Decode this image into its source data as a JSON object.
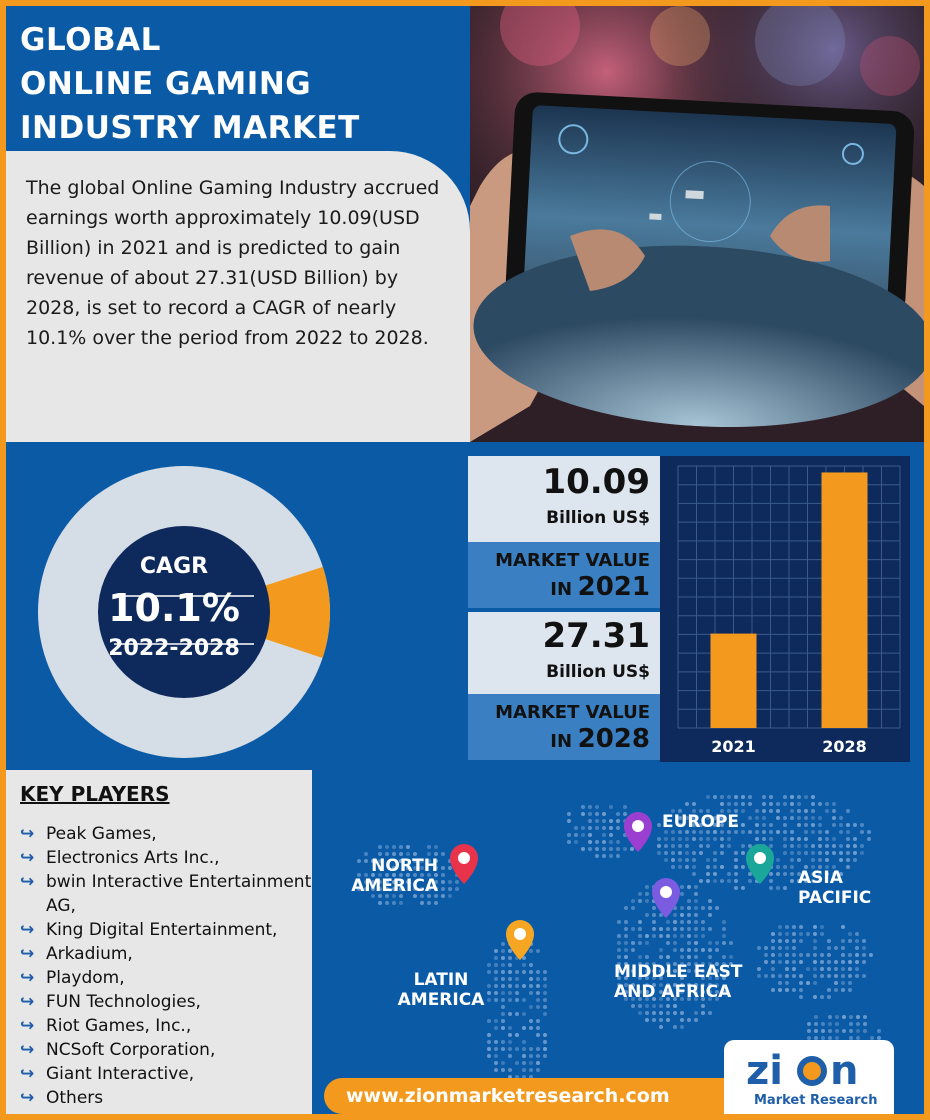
{
  "header": {
    "title_lines": [
      "GLOBAL",
      "ONLINE GAMING",
      "INDUSTRY MARKET"
    ],
    "description": "The global Online Gaming Industry accrued earnings worth approximately 10.09(USD Billion) in 2021 and is predicted to gain revenue of about 27.31(USD Billion) by 2028, is set to record a CAGR of nearly 10.1% over the period from 2022 to 2028."
  },
  "cagr": {
    "label": "CAGR",
    "value": "10.1%",
    "period": "2022-2028",
    "share_fraction": 0.101
  },
  "market_values": [
    {
      "value": "10.09",
      "unit": "Billion US$",
      "label_top": "MARKET VALUE",
      "label_in": "IN",
      "year": "2021"
    },
    {
      "value": "27.31",
      "unit": "Billion US$",
      "label_top": "MARKET VALUE",
      "label_in": "IN",
      "year": "2028"
    }
  ],
  "chart_data": {
    "type": "bar",
    "categories": [
      "2021",
      "2028"
    ],
    "values": [
      10.09,
      27.31
    ],
    "title": "",
    "xlabel": "",
    "ylabel": "",
    "ylim": [
      0,
      28
    ],
    "grid": true,
    "bar_color": "#f39a1e"
  },
  "key_players": {
    "title": "KEY PLAYERS",
    "items": [
      "Peak Games,",
      "Electronics Arts Inc.,",
      "bwin Interactive Entertainment AG,",
      "King Digital Entertainment,",
      "Arkadium,",
      "Playdom,",
      "FUN Technologies,",
      "Riot Games, Inc.,",
      "NCSoft Corporation,",
      "Giant Interactive,",
      "Others"
    ]
  },
  "regions": {
    "north_america": [
      "NORTH",
      "AMERICA"
    ],
    "europe": [
      "EUROPE"
    ],
    "asia_pacific": [
      "ASIA",
      "PACIFIC"
    ],
    "latin_america": [
      "LATIN",
      "AMERICA"
    ],
    "mea": [
      "MIDDLE EAST",
      "AND AFRICA"
    ]
  },
  "footer": {
    "url": "www.zionmarketresearch.com",
    "logo_word": "zion",
    "logo_sub": "Market Research"
  },
  "colors": {
    "brand_blue": "#0b5aa5",
    "navy": "#0e2a5c",
    "orange": "#f39a1e",
    "light_gray": "#e7e7e7",
    "pin_red": "#e8334a",
    "pin_purple": "#9b3fd1",
    "pin_violet": "#7b5be0",
    "pin_teal": "#1aa79a",
    "pin_orange": "#f5a623"
  }
}
